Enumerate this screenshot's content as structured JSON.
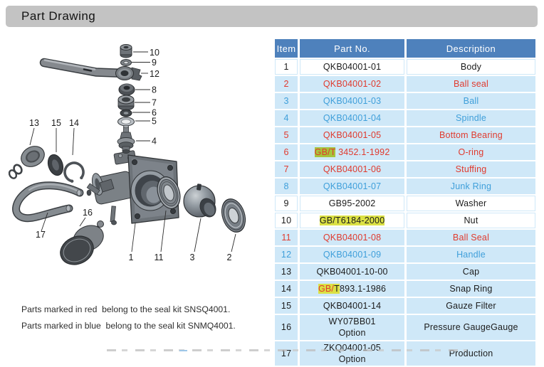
{
  "title_bar": {
    "title": "Part Drawing"
  },
  "colors": {
    "title_bar_bg": "#c3c3c3",
    "table_header_bg": "#4e81bc",
    "row_blue_bg": "#cfe8f8",
    "text_red": "#e03a2e",
    "text_blue": "#3f9fda",
    "highlight_green": "#a6c43d",
    "highlight_yellow": "#dbe144"
  },
  "drawing": {
    "callouts": {
      "c1": "1",
      "c2": "2",
      "c3": "3",
      "c4": "4",
      "c5": "5",
      "c6": "6",
      "c7": "7",
      "c8": "8",
      "c9": "9",
      "c10": "10",
      "c11": "11",
      "c12": "12",
      "c13": "13",
      "c14": "14",
      "c15": "15",
      "c16": "16",
      "c17": "17"
    }
  },
  "table": {
    "headers": [
      "Item",
      "Part No.",
      "Description"
    ],
    "rows": [
      {
        "item": "1",
        "part": [
          {
            "t": "QKB04001-01"
          }
        ],
        "desc": "Body",
        "color": "black",
        "bg": "white"
      },
      {
        "item": "2",
        "part": [
          {
            "t": "QKB04001-02"
          }
        ],
        "desc": "Ball seal",
        "color": "red",
        "bg": "blue"
      },
      {
        "item": "3",
        "part": [
          {
            "t": "QKB04001-03"
          }
        ],
        "desc": "Ball",
        "color": "blue",
        "bg": "blue"
      },
      {
        "item": "4",
        "part": [
          {
            "t": "QKB04001-04"
          }
        ],
        "desc": "Spindle",
        "color": "blue",
        "bg": "blue"
      },
      {
        "item": "5",
        "part": [
          {
            "t": "QKB04001-05"
          }
        ],
        "desc": "Bottom Bearing",
        "color": "red",
        "bg": "blue"
      },
      {
        "item": "6",
        "part": [
          {
            "t": "GB/T",
            "hl": "green"
          },
          {
            "t": " 3452.1-1992"
          }
        ],
        "desc": "O-ring",
        "color": "red",
        "bg": "blue"
      },
      {
        "item": "7",
        "part": [
          {
            "t": "QKB04001-06"
          }
        ],
        "desc": "Stuffing",
        "color": "red",
        "bg": "blue"
      },
      {
        "item": "8",
        "part": [
          {
            "t": "QKB04001-07"
          }
        ],
        "desc": "Junk Ring",
        "color": "blue",
        "bg": "blue"
      },
      {
        "item": "9",
        "part": [
          {
            "t": "GB95-2002"
          }
        ],
        "desc": "Washer",
        "color": "black",
        "bg": "white"
      },
      {
        "item": "10",
        "part": [
          {
            "t": "GB/T6184-2000",
            "hl": "yellow"
          }
        ],
        "desc": "Nut",
        "color": "black",
        "bg": "white"
      },
      {
        "item": "11",
        "part": [
          {
            "t": "QKB04001-08"
          }
        ],
        "desc": "Ball Seal",
        "color": "red",
        "bg": "blue"
      },
      {
        "item": "12",
        "part": [
          {
            "t": "QKB04001-09"
          }
        ],
        "desc": "Handle",
        "color": "blue",
        "bg": "blue"
      },
      {
        "item": "13",
        "part": [
          {
            "t": "QKB04001-10-00"
          }
        ],
        "desc": "Cap",
        "color": "black",
        "bg": "blue"
      },
      {
        "item": "14",
        "part": [
          {
            "t": "GB/",
            "hl": "yellow",
            "tc": "red"
          },
          {
            "t": "T",
            "hl": "yellow"
          },
          {
            "t": "893.1-1986"
          }
        ],
        "desc": "Snap Ring",
        "color": "black",
        "bg": "blue"
      },
      {
        "item": "15",
        "part": [
          {
            "t": "QKB04001-14"
          }
        ],
        "desc": "Gauze Filter",
        "color": "black",
        "bg": "blue"
      },
      {
        "item": "16",
        "part": [
          {
            "t": "WY07BB01"
          },
          {
            "br": true
          },
          {
            "t": "Option"
          }
        ],
        "desc": "Pressure GaugeGauge",
        "color": "black",
        "bg": "blue"
      },
      {
        "item": "17",
        "part": [
          {
            "t": "ZKQ04001-05"
          },
          {
            "br": true
          },
          {
            "t": "Option"
          }
        ],
        "desc": "Production",
        "color": "black",
        "bg": "blue"
      }
    ]
  },
  "notes": {
    "line1": "Parts marked in red  belong to the seal kit SNSQ4001.",
    "line2": "Parts marked in blue  belong to the seal kit SNMQ4001."
  }
}
